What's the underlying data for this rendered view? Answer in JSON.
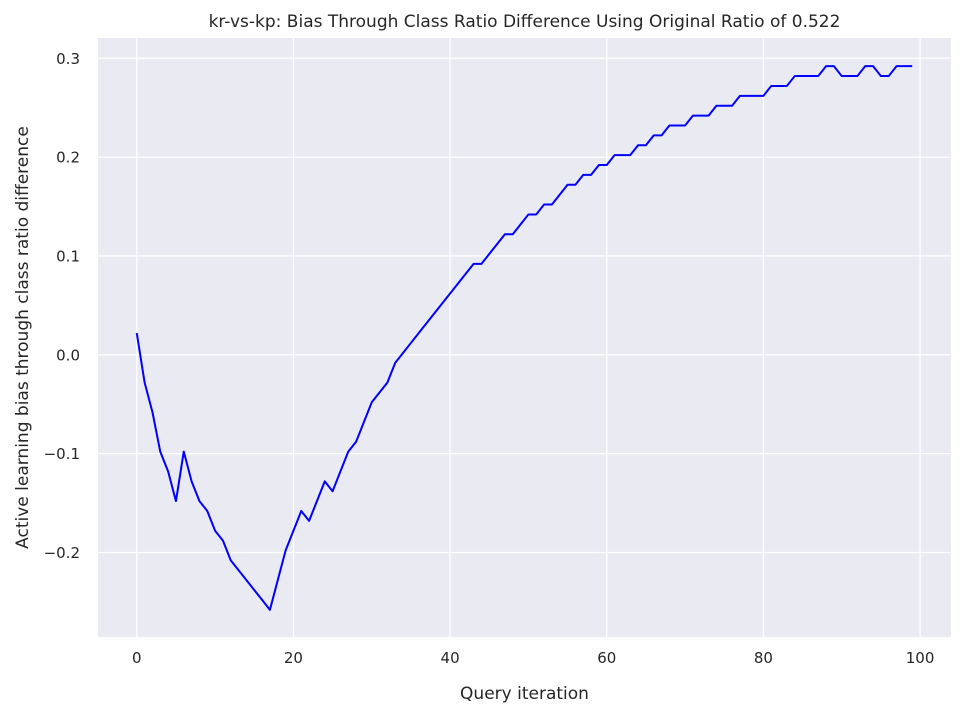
{
  "chart_data": {
    "type": "line",
    "title": "kr-vs-kp: Bias Through Class Ratio Difference Using Original Ratio of 0.522",
    "xlabel": "Query iteration",
    "ylabel": "Active learning bias through class ratio difference",
    "xlim": [
      -4.95,
      103.95
    ],
    "ylim": [
      -0.2855,
      0.3205
    ],
    "xticks": [
      0,
      20,
      40,
      60,
      80,
      100
    ],
    "xtick_labels": [
      "0",
      "20",
      "40",
      "60",
      "80",
      "100"
    ],
    "yticks": [
      -0.2,
      -0.1,
      0.0,
      0.1,
      0.2,
      0.3
    ],
    "ytick_labels": [
      "−0.2",
      "−0.1",
      "0.0",
      "0.1",
      "0.2",
      "0.3"
    ],
    "grid": true,
    "background": "#eaeaf2",
    "line_color": "#0000ff",
    "series": [
      {
        "x": [
          0,
          1,
          2,
          3,
          4,
          5,
          6,
          7,
          8,
          9,
          10,
          11,
          12,
          13,
          14,
          15,
          16,
          17,
          18,
          19,
          20,
          21,
          22,
          23,
          24,
          25,
          26,
          27,
          28,
          29,
          30,
          31,
          32,
          33,
          34,
          35,
          36,
          37,
          38,
          39,
          40,
          41,
          42,
          43,
          44,
          45,
          46,
          47,
          48,
          49,
          50,
          51,
          52,
          53,
          54,
          55,
          56,
          57,
          58,
          59,
          60,
          61,
          62,
          63,
          64,
          65,
          66,
          67,
          68,
          69,
          70,
          71,
          72,
          73,
          74,
          75,
          76,
          77,
          78,
          79,
          80,
          81,
          82,
          83,
          84,
          85,
          86,
          87,
          88,
          89,
          90,
          91,
          92,
          93,
          94,
          95,
          96,
          97,
          98,
          99
        ],
        "values": [
          0.022,
          -0.028,
          -0.058,
          -0.098,
          -0.118,
          -0.148,
          -0.098,
          -0.128,
          -0.148,
          -0.158,
          -0.178,
          -0.188,
          -0.208,
          -0.218,
          -0.228,
          -0.238,
          -0.248,
          -0.258,
          -0.228,
          -0.198,
          -0.178,
          -0.158,
          -0.168,
          -0.148,
          -0.128,
          -0.138,
          -0.118,
          -0.098,
          -0.088,
          -0.068,
          -0.048,
          -0.038,
          -0.028,
          -0.008,
          0.002,
          0.012,
          0.022,
          0.032,
          0.042,
          0.052,
          0.062,
          0.072,
          0.082,
          0.092,
          0.092,
          0.102,
          0.112,
          0.122,
          0.122,
          0.132,
          0.142,
          0.142,
          0.152,
          0.152,
          0.162,
          0.172,
          0.172,
          0.182,
          0.182,
          0.192,
          0.192,
          0.202,
          0.202,
          0.202,
          0.212,
          0.212,
          0.222,
          0.222,
          0.232,
          0.232,
          0.232,
          0.242,
          0.242,
          0.242,
          0.252,
          0.252,
          0.252,
          0.262,
          0.262,
          0.262,
          0.262,
          0.272,
          0.272,
          0.272,
          0.282,
          0.282,
          0.282,
          0.282,
          0.292,
          0.292,
          0.282,
          0.282,
          0.282,
          0.292,
          0.292,
          0.282,
          0.282,
          0.292,
          0.292,
          0.292
        ]
      }
    ]
  }
}
